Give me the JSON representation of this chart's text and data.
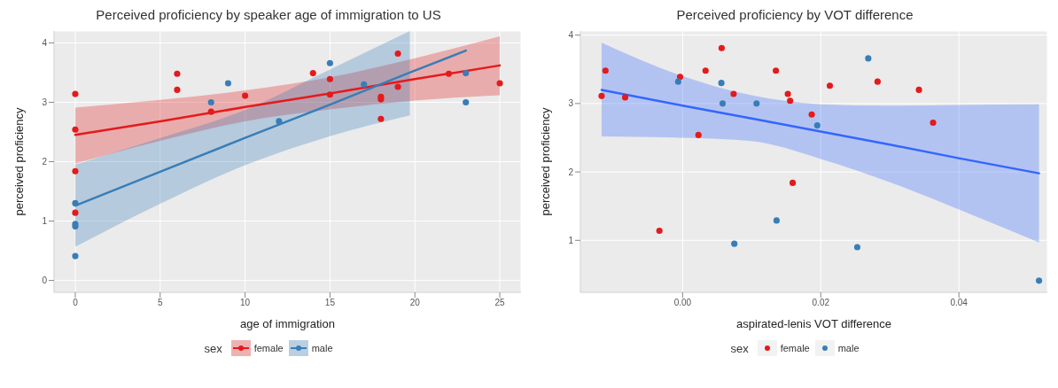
{
  "chart_data": [
    {
      "type": "scatter",
      "title": "Perceived proficiency by speaker age of immigration to US",
      "xlabel": "age of immigration",
      "ylabel": "perceived proficiency",
      "legend_title": "sex",
      "legend": "bottom",
      "grid": true,
      "xlim": [
        -1.25,
        26.25
      ],
      "ylim": [
        -0.2,
        4.2
      ],
      "xticks": [
        0,
        5,
        10,
        15,
        20,
        25
      ],
      "yticks": [
        0,
        1,
        2,
        3,
        4
      ],
      "series": [
        {
          "type": "line",
          "marker": "none",
          "color": "#e41a1c",
          "x": [
            0,
            5,
            10,
            15,
            20,
            25
          ],
          "values": [
            2.45,
            2.68,
            2.92,
            3.15,
            3.39,
            3.62
          ],
          "lower": [
            1.97,
            2.35,
            2.68,
            2.88,
            3.03,
            3.12
          ],
          "upper": [
            2.91,
            3.04,
            3.2,
            3.42,
            3.74,
            4.11
          ]
        },
        {
          "type": "line",
          "marker": "none",
          "color": "#377eb8",
          "x": [
            0,
            5,
            10,
            15,
            19.7,
            23
          ],
          "values": [
            1.26,
            1.83,
            2.4,
            2.96,
            3.5,
            3.87
          ],
          "lower": [
            0.57,
            1.29,
            1.94,
            2.43,
            2.78,
            null
          ],
          "upper": [
            1.95,
            2.4,
            2.87,
            3.55,
            4.2,
            null
          ]
        },
        {
          "type": "scatter",
          "marker": "circle",
          "name": "female",
          "color": "#e41a1c",
          "x": [
            0,
            0,
            0,
            0,
            6,
            6,
            8,
            10,
            14,
            15,
            15,
            18,
            18,
            18,
            19,
            19,
            22,
            25
          ],
          "values": [
            3.14,
            2.54,
            1.84,
            1.14,
            3.48,
            3.21,
            2.84,
            3.11,
            3.49,
            3.39,
            3.13,
            3.09,
            3.05,
            2.72,
            3.82,
            3.26,
            3.48,
            3.32
          ]
        },
        {
          "type": "scatter",
          "marker": "circle",
          "name": "male",
          "color": "#377eb8",
          "x": [
            0,
            0,
            0,
            0,
            8,
            9,
            12,
            15,
            17,
            23,
            23
          ],
          "values": [
            1.3,
            0.95,
            0.91,
            0.41,
            3.0,
            3.32,
            2.68,
            3.66,
            3.3,
            3.49,
            3.0
          ]
        }
      ]
    },
    {
      "type": "scatter",
      "title": "Perceived proficiency by VOT difference",
      "xlabel": "aspirated-lenis VOT difference",
      "ylabel": "perceived proficiency",
      "legend_title": "sex",
      "legend": "bottom",
      "grid": true,
      "xlim": [
        -0.0148,
        0.0528
      ],
      "ylim": [
        0.24,
        4.06
      ],
      "xticks": [
        {
          "value": 0,
          "label": "0.00"
        },
        {
          "value": 0.02,
          "label": "0.02"
        },
        {
          "value": 0.04,
          "label": "0.04"
        }
      ],
      "yticks": [
        1,
        2,
        3,
        4
      ],
      "series": [
        {
          "type": "line",
          "marker": "none",
          "color": "#3366ff",
          "x": [
            -0.01173,
            0,
            0.01,
            0.02,
            0.03,
            0.04,
            0.05159
          ],
          "values": [
            3.2,
            2.97,
            2.78,
            2.59,
            2.4,
            2.2,
            1.98
          ],
          "lower": [
            2.52,
            2.5,
            2.45,
            2.19,
            1.85,
            1.45,
            0.97
          ],
          "upper": [
            3.89,
            3.4,
            3.12,
            2.99,
            2.97,
            2.98,
            2.99
          ]
        },
        {
          "type": "scatter",
          "marker": "circle",
          "name": "female",
          "color": "#e41a1c",
          "x": [
            -0.01173,
            -0.01117,
            -0.00832,
            -0.00336,
            -0.00037,
            0.00229,
            0.00332,
            0.00565,
            0.00738,
            0.0135,
            0.01523,
            0.01556,
            0.01593,
            0.01869,
            0.02131,
            0.02822,
            0.03421,
            0.03626
          ],
          "values": [
            3.11,
            3.48,
            3.09,
            1.14,
            3.39,
            2.54,
            3.48,
            3.81,
            3.14,
            3.48,
            3.14,
            3.04,
            1.84,
            2.84,
            3.26,
            3.32,
            3.2,
            2.72
          ]
        },
        {
          "type": "scatter",
          "marker": "circle",
          "name": "male",
          "color": "#377eb8",
          "x": [
            -0.00065,
            0.00561,
            0.00579,
            0.00748,
            0.0107,
            0.0136,
            0.01949,
            0.02528,
            0.02687,
            0.05159
          ],
          "values": [
            3.32,
            3.3,
            3.0,
            0.95,
            3.0,
            1.29,
            2.68,
            0.9,
            3.66,
            0.41
          ]
        }
      ]
    }
  ]
}
